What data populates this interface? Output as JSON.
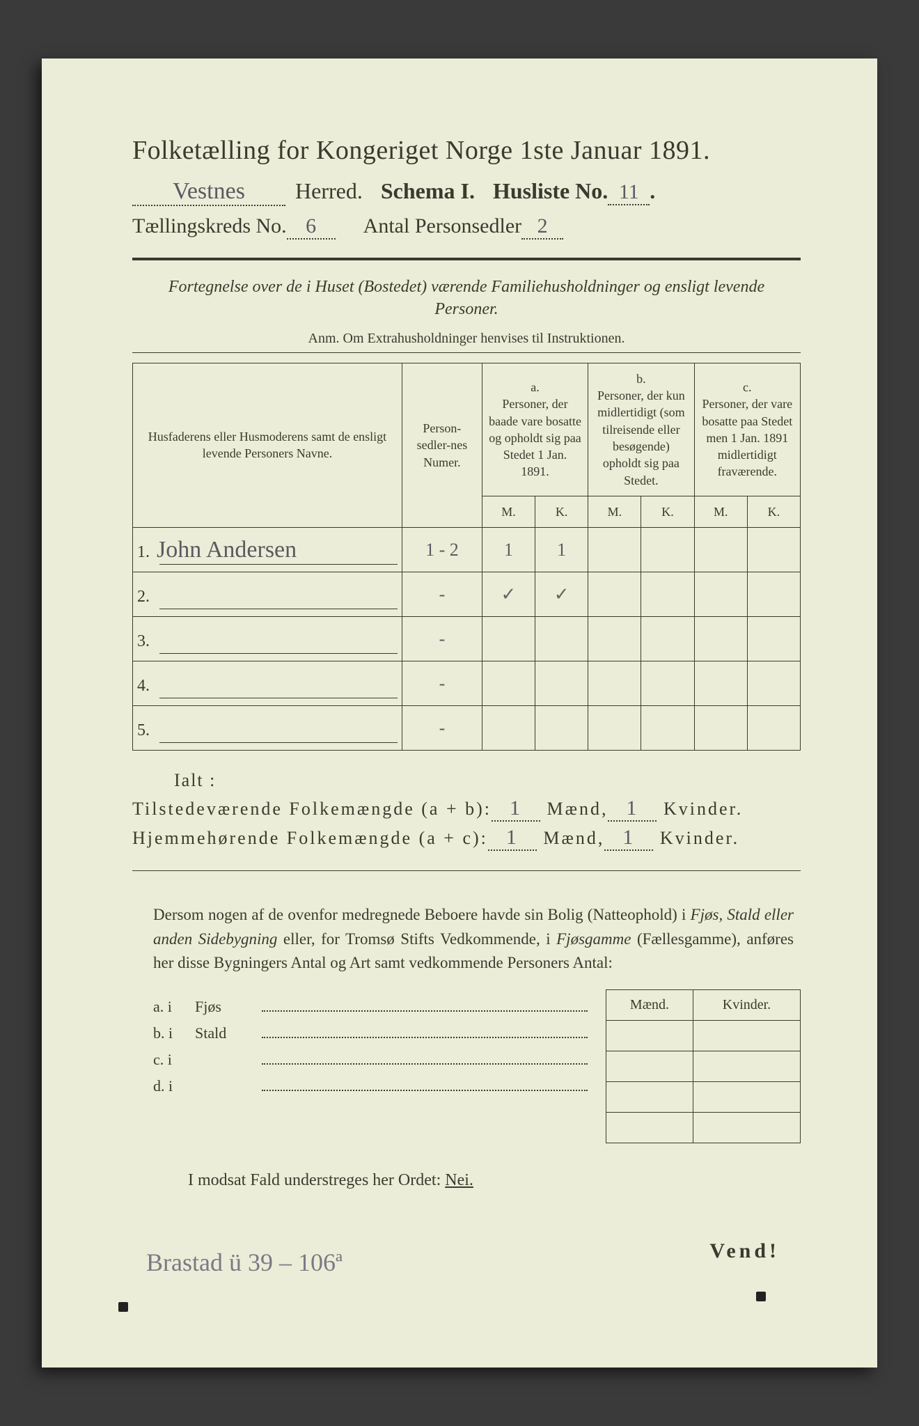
{
  "header": {
    "title": "Folketælling for Kongeriget Norge 1ste Januar 1891.",
    "herred_value": "Vestnes",
    "herred_label": "Herred.",
    "schema_label": "Schema I.",
    "husliste_label": "Husliste No.",
    "husliste_value": "11",
    "kreds_label": "Tællingskreds No.",
    "kreds_value": "6",
    "antal_label": "Antal Personsedler",
    "antal_value": "2"
  },
  "intro": {
    "line": "Fortegnelse over de i Huset (Bostedet) værende Familiehusholdninger og ensligt levende Personer.",
    "anm": "Anm.  Om Extrahusholdninger henvises til Instruktionen."
  },
  "table": {
    "head": {
      "name": "Husfaderens eller Husmoderens samt de ensligt levende Personers Navne.",
      "num": "Person-sedler-nes Numer.",
      "a_label": "a.",
      "a_text": "Personer, der baade vare bosatte og opholdt sig paa Stedet 1 Jan. 1891.",
      "b_label": "b.",
      "b_text": "Personer, der kun midlertidigt (som tilreisende eller besøgende) opholdt sig paa Stedet.",
      "c_label": "c.",
      "c_text": "Personer, der vare bosatte paa Stedet men 1 Jan. 1891 midlertidigt fraværende.",
      "m": "M.",
      "k": "K."
    },
    "rows": [
      {
        "n": "1.",
        "name": "John Andersen",
        "num": "1 - 2",
        "am": "1",
        "ak": "1",
        "bm": "",
        "bk": "",
        "cm": "",
        "ck": ""
      },
      {
        "n": "2.",
        "name": "",
        "num": "-",
        "am": "✓",
        "ak": "✓",
        "bm": "",
        "bk": "",
        "cm": "",
        "ck": ""
      },
      {
        "n": "3.",
        "name": "",
        "num": "-",
        "am": "",
        "ak": "",
        "bm": "",
        "bk": "",
        "cm": "",
        "ck": ""
      },
      {
        "n": "4.",
        "name": "",
        "num": "-",
        "am": "",
        "ak": "",
        "bm": "",
        "bk": "",
        "cm": "",
        "ck": ""
      },
      {
        "n": "5.",
        "name": "",
        "num": "-",
        "am": "",
        "ak": "",
        "bm": "",
        "bk": "",
        "cm": "",
        "ck": ""
      }
    ]
  },
  "totals": {
    "ialt": "Ialt :",
    "line1a": "Tilstedeværende Folkemængde (a + b):",
    "line2a": "Hjemmehørende Folkemængde (a + c):",
    "maend": "Mænd,",
    "kvinder": "Kvinder.",
    "v1m": "1",
    "v1k": "1",
    "v2m": "1",
    "v2k": "1"
  },
  "para": {
    "text1": "Dersom nogen af de ovenfor medregnede Beboere havde sin Bolig (Natteophold) i ",
    "it1": "Fjøs, Stald eller anden Sidebygning",
    "text2": " eller, for Tromsø Stifts Vedkommende, i ",
    "it2": "Fjøsgamme",
    "text3": " (Fællesgamme), anføres her disse Bygningers Antal og Art samt vedkommende Personers Antal:"
  },
  "side": {
    "rows": [
      {
        "a": "a.  i",
        "b": "Fjøs"
      },
      {
        "a": "b.  i",
        "b": "Stald"
      },
      {
        "a": "c.  i",
        "b": ""
      },
      {
        "a": "d.  i",
        "b": ""
      }
    ],
    "mh": "Mænd.",
    "kh": "Kvinder."
  },
  "nei": {
    "text": "I modsat Fald understreges her Ordet: ",
    "word": "Nei."
  },
  "vend": "Vend!",
  "foot": "Brastad ü 39 – 106ª",
  "colors": {
    "paper": "#ecedd8",
    "ink": "#3a3a2e",
    "hand": "#5a5a60",
    "bg": "#3a3a3a"
  }
}
